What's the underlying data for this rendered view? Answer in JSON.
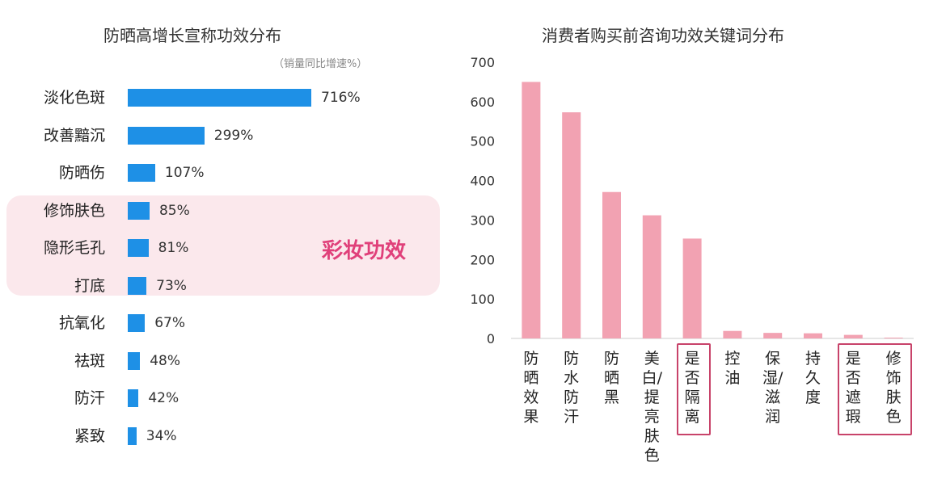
{
  "chart_data": [
    {
      "type": "bar",
      "orientation": "horizontal",
      "title": "防晒高增长宣称功效分布",
      "subtitle": "（销量同比增速%）",
      "categories": [
        "淡化色斑",
        "改善黯沉",
        "防晒伤",
        "修饰肤色",
        "隐形毛孔",
        "打底",
        "抗氧化",
        "祛斑",
        "防汗",
        "紧致"
      ],
      "values": [
        716,
        299,
        107,
        85,
        81,
        73,
        67,
        48,
        42,
        34
      ],
      "value_labels": [
        "716%",
        "299%",
        "107%",
        "85%",
        "81%",
        "73%",
        "67%",
        "48%",
        "42%",
        "34%"
      ],
      "bar_color": "#1e90e6",
      "highlight": {
        "label": "彩妆功效",
        "categories": [
          "修饰肤色",
          "隐形毛孔",
          "打底"
        ],
        "color": "#e0407a",
        "background": "#fbe8ec"
      }
    },
    {
      "type": "bar",
      "title": "消费者购买前咨询功效关键词分布",
      "categories": [
        "防晒效果",
        "防水防汗",
        "防晒黑",
        "美白/提亮肤色",
        "是否隔离",
        "控油",
        "保湿/滋润",
        "持久度",
        "是否遮瑕",
        "修饰肤色"
      ],
      "values": [
        650,
        573,
        371,
        312,
        253,
        19,
        14,
        13,
        9,
        2
      ],
      "ylim": [
        0,
        700
      ],
      "yticks": [
        0,
        100,
        200,
        300,
        400,
        500,
        600,
        700
      ],
      "grid": false,
      "bar_color": "#f2a2b2",
      "highlighted_categories": [
        "是否隔离",
        "是否遮瑕",
        "修饰肤色"
      ],
      "highlight_color": "#c8436a"
    }
  ]
}
